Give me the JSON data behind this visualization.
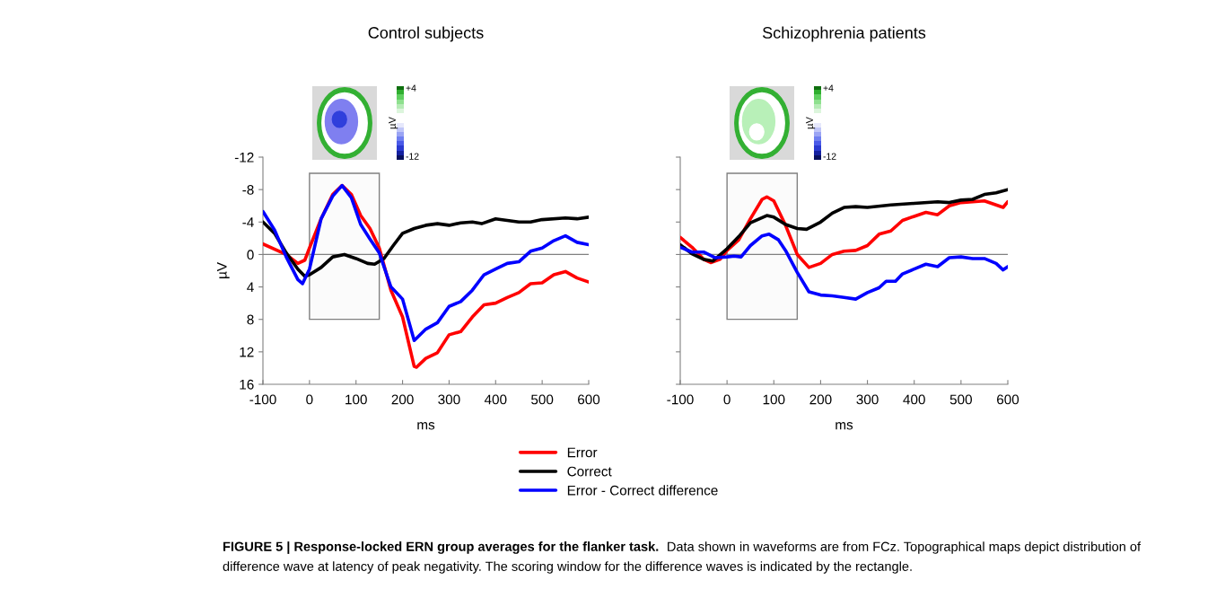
{
  "chart_data": [
    {
      "type": "line",
      "title": "Control subjects",
      "xlabel": "ms",
      "ylabel": "µV",
      "annotations": [
        "+4",
        "µV",
        "-12",
        "FIGURE 5 | Response-locked ERN group averages for the flanker task.",
        "Data shown in waveforms are from FCz. Topographical maps depict distribution of",
        "difference wave at latency of peak negativity. The scoring window for the difference waves is indicated by the rectangle."
      ],
      "xlim": [
        -100,
        600
      ],
      "ylim": [
        16,
        -12
      ],
      "xticks": [
        -100,
        0,
        100,
        200,
        300,
        400,
        500,
        600
      ],
      "yticks": [
        -12,
        -8,
        -4,
        0,
        4,
        8,
        12,
        16
      ],
      "ref_lines": [
        {
          "axis": "y",
          "value": 0,
          "color": "#808080"
        }
      ],
      "bands": [
        {
          "axis": "x",
          "from": 0,
          "to": 150,
          "color": "#808080"
        }
      ],
      "legend": "bottom",
      "series": [
        {
          "name": "Error",
          "color": "#ff0000",
          "x": [
            -100,
            -50,
            -25,
            -10,
            0,
            25,
            50,
            70,
            90,
            110,
            130,
            150,
            175,
            200,
            225,
            230,
            250,
            275,
            300,
            325,
            350,
            375,
            400,
            425,
            450,
            475,
            500,
            525,
            550,
            575,
            600
          ],
          "values": [
            -1.3,
            0,
            1.1,
            0.7,
            -0.8,
            -4.4,
            -7.4,
            -8.5,
            -7.4,
            -4.8,
            -3.2,
            -0.8,
            4.4,
            7.7,
            13.8,
            13.9,
            12.8,
            12.1,
            9.9,
            9.5,
            7.7,
            6.2,
            6.0,
            5.3,
            4.7,
            3.6,
            3.5,
            2.5,
            2.1,
            2.9,
            3.4
          ]
        },
        {
          "name": "Correct",
          "color": "#000000",
          "x": [
            -100,
            -75,
            -50,
            -25,
            -10,
            0,
            25,
            50,
            75,
            100,
            125,
            140,
            160,
            180,
            200,
            225,
            250,
            275,
            300,
            325,
            350,
            370,
            400,
            425,
            450,
            475,
            500,
            550,
            575,
            600
          ],
          "values": [
            -4.0,
            -2.6,
            -0.2,
            1.8,
            2.7,
            2.5,
            1.6,
            0.3,
            0,
            0.5,
            1.1,
            1.2,
            0.5,
            -1.1,
            -2.6,
            -3.2,
            -3.6,
            -3.8,
            -3.6,
            -3.9,
            -4.0,
            -3.8,
            -4.4,
            -4.2,
            -4.0,
            -4.0,
            -4.3,
            -4.5,
            -4.4,
            -4.6
          ]
        },
        {
          "name": "Error - Correct difference",
          "color": "#0000ff",
          "x": [
            -100,
            -75,
            -50,
            -25,
            -15,
            0,
            25,
            50,
            70,
            90,
            110,
            130,
            150,
            175,
            200,
            225,
            250,
            275,
            300,
            325,
            350,
            375,
            400,
            425,
            450,
            475,
            500,
            525,
            550,
            575,
            600
          ],
          "values": [
            -5.3,
            -3.0,
            0.3,
            3.1,
            3.6,
            1.8,
            -4.4,
            -7.2,
            -8.5,
            -7.0,
            -3.7,
            -1.9,
            -0.2,
            4.0,
            5.5,
            10.6,
            9.2,
            8.4,
            6.4,
            5.8,
            4.4,
            2.5,
            1.8,
            1.1,
            0.9,
            -0.4,
            -0.8,
            -1.7,
            -2.3,
            -1.5,
            -1.2
          ]
        }
      ]
    },
    {
      "type": "line",
      "title": "Schizophrenia patients",
      "xlabel": "ms",
      "annotations": [
        "+4",
        "µV",
        "-12"
      ],
      "xlim": [
        -100,
        600
      ],
      "ylim": [
        16,
        -12
      ],
      "xticks": [
        -100,
        0,
        100,
        200,
        300,
        400,
        500,
        600
      ],
      "yticks": [
        -12,
        -8,
        -4,
        0,
        4,
        8,
        12,
        16
      ],
      "tick_labels": "x",
      "ref_lines": [
        {
          "axis": "y",
          "value": 0,
          "color": "#808080"
        }
      ],
      "bands": [
        {
          "axis": "x",
          "from": 0,
          "to": 150,
          "color": "#808080"
        }
      ],
      "series": [
        {
          "color": "#ff0000",
          "x": [
            -100,
            -75,
            -50,
            -35,
            -15,
            0,
            25,
            50,
            75,
            85,
            100,
            125,
            150,
            175,
            200,
            225,
            250,
            275,
            300,
            325,
            350,
            375,
            400,
            425,
            450,
            475,
            500,
            525,
            550,
            575,
            590,
            600
          ],
          "values": [
            -2.1,
            -0.9,
            0.6,
            1.0,
            0.6,
            -0.5,
            -1.8,
            -4.4,
            -6.8,
            -7.1,
            -6.6,
            -3.6,
            0,
            1.6,
            1.1,
            0,
            -0.4,
            -0.5,
            -1.1,
            -2.5,
            -2.9,
            -4.2,
            -4.7,
            -5.2,
            -4.9,
            -6.0,
            -6.4,
            -6.5,
            -6.6,
            -6.1,
            -5.8,
            -6.5
          ]
        },
        {
          "color": "#000000",
          "x": [
            -100,
            -75,
            -50,
            -30,
            0,
            25,
            50,
            85,
            100,
            125,
            150,
            170,
            200,
            225,
            250,
            275,
            300,
            350,
            400,
            450,
            475,
            500,
            525,
            550,
            575,
            600
          ],
          "values": [
            -1.2,
            -0.1,
            0.6,
            0.8,
            -0.7,
            -2.2,
            -3.9,
            -4.8,
            -4.6,
            -3.7,
            -3.2,
            -3.1,
            -4.0,
            -5.1,
            -5.8,
            -5.9,
            -5.8,
            -6.1,
            -6.3,
            -6.5,
            -6.4,
            -6.7,
            -6.8,
            -7.4,
            -7.6,
            -8.0
          ]
        },
        {
          "color": "#0000ff",
          "x": [
            -100,
            -75,
            -50,
            -25,
            0,
            15,
            30,
            50,
            75,
            90,
            110,
            125,
            150,
            175,
            200,
            225,
            250,
            275,
            300,
            325,
            340,
            360,
            375,
            400,
            425,
            450,
            475,
            500,
            525,
            550,
            575,
            590,
            600
          ],
          "values": [
            -0.9,
            -0.3,
            -0.3,
            0.4,
            0.3,
            0.2,
            0.3,
            -1.1,
            -2.3,
            -2.5,
            -1.8,
            -0.5,
            2.2,
            4.6,
            5.0,
            5.1,
            5.3,
            5.5,
            4.7,
            4.1,
            3.3,
            3.3,
            2.4,
            1.8,
            1.2,
            1.5,
            0.4,
            0.3,
            0.5,
            0.5,
            1.1,
            1.9,
            1.5
          ]
        }
      ]
    }
  ]
}
